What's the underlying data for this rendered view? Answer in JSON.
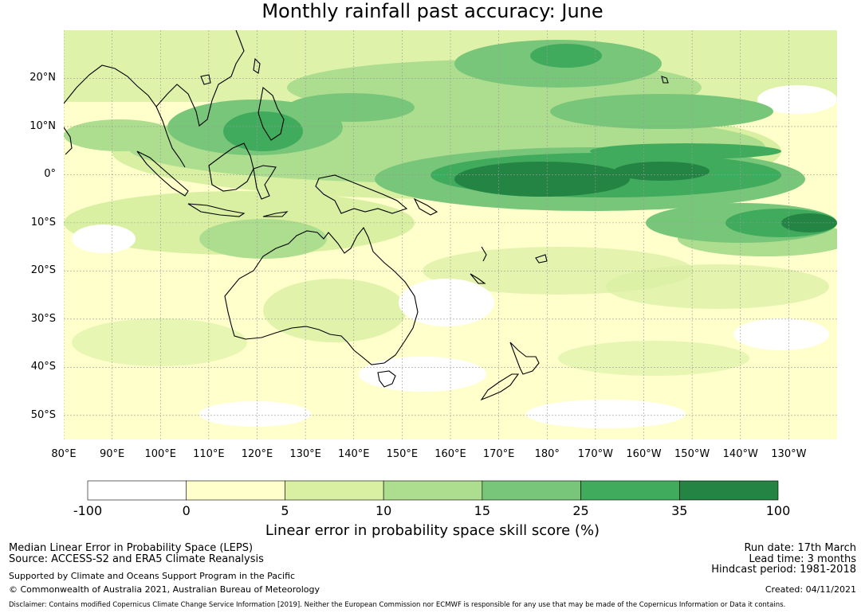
{
  "title": "Monthly rainfall past accuracy: June",
  "map": {
    "lat_labels": [
      "20°N",
      "10°N",
      "0°",
      "10°S",
      "20°S",
      "30°S",
      "40°S",
      "50°S"
    ],
    "lat_values": [
      20,
      10,
      0,
      -10,
      -20,
      -30,
      -40,
      -50
    ],
    "lon_labels": [
      "80°E",
      "90°E",
      "100°E",
      "110°E",
      "120°E",
      "130°E",
      "140°E",
      "150°E",
      "160°E",
      "170°E",
      "180°",
      "170°W",
      "160°W",
      "150°W",
      "140°W",
      "130°W"
    ],
    "lon_values": [
      80,
      90,
      100,
      110,
      120,
      130,
      140,
      150,
      160,
      170,
      180,
      190,
      200,
      210,
      220,
      230
    ],
    "lon_range": [
      80,
      240
    ],
    "lat_range": [
      -55,
      30
    ],
    "grid": true
  },
  "colorbar": {
    "ticks": [
      "-100",
      "0",
      "5",
      "10",
      "15",
      "25",
      "35",
      "100"
    ],
    "colors": [
      "#ffffff",
      "#ffffcc",
      "#d9f0a3",
      "#addd8e",
      "#78c679",
      "#41ab5d",
      "#238443"
    ],
    "label": "Linear error in probability space skill score (%)"
  },
  "info": {
    "line1": "Median Linear Error in Probability Space (LEPS)",
    "line2": "Source: ACCESS-S2 and ERA5 Climate Reanalysis",
    "line3": "Supported by Climate and Oceans Support Program in the Pacific",
    "line4": "© Commonwealth of Australia 2021, Australian Bureau of Meteorology",
    "run_date": "Run date: 17th March",
    "lead_time": "Lead time: 3 months",
    "hindcast": "Hindcast period: 1981-2018",
    "created": "Created: 04/11/2021",
    "disclaimer": "Disclaimer: Contains modified Copernicus Climate Change Service Information [2019]. Neither the European Commission nor ECMWF is responsible for any use that may be made of the Copernicus Information or Data it contains."
  }
}
